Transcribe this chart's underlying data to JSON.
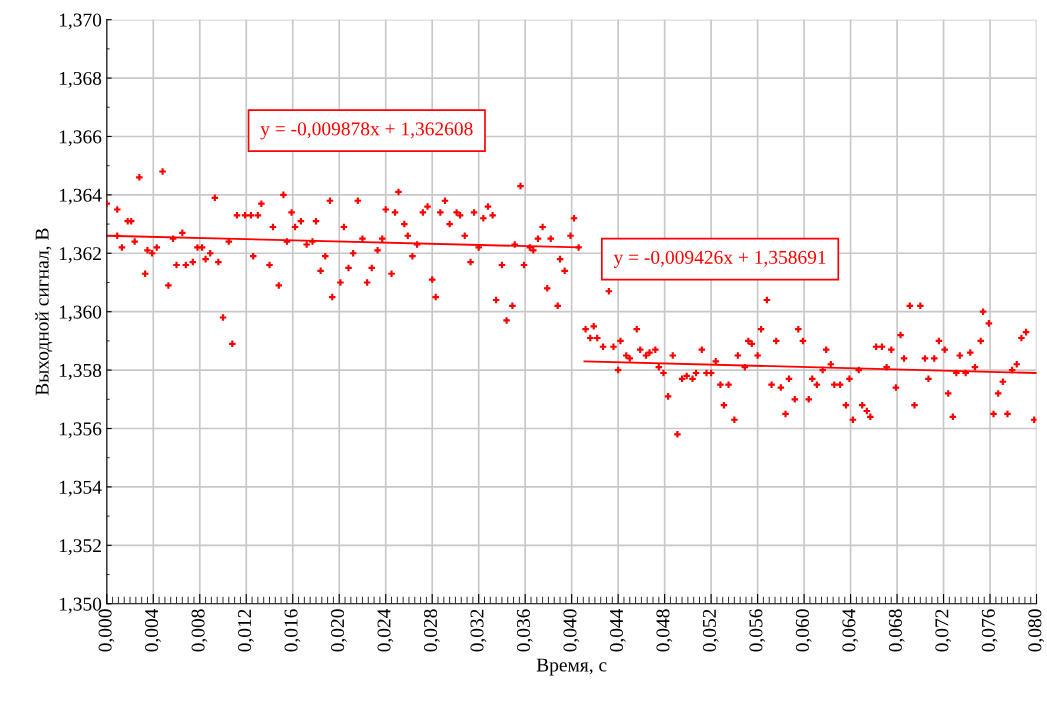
{
  "chart_data": {
    "type": "scatter",
    "xlabel": "Время, с",
    "ylabel": "Выходной сигнал, В",
    "annotations": [
      "y = -0,009878x + 1,362608",
      "y = -0,009426x + 1,358691"
    ],
    "xlim": [
      0,
      0.08
    ],
    "ylim": [
      1.35,
      1.37
    ],
    "xticks": [
      {
        "value": 0.0,
        "label": "0,000"
      },
      {
        "value": 0.004,
        "label": "0,004"
      },
      {
        "value": 0.008,
        "label": "0,008"
      },
      {
        "value": 0.012,
        "label": "0,012"
      },
      {
        "value": 0.016,
        "label": "0,016"
      },
      {
        "value": 0.02,
        "label": "0,020"
      },
      {
        "value": 0.024,
        "label": "0,024"
      },
      {
        "value": 0.028,
        "label": "0,028"
      },
      {
        "value": 0.032,
        "label": "0,032"
      },
      {
        "value": 0.036,
        "label": "0,036"
      },
      {
        "value": 0.04,
        "label": "0,040"
      },
      {
        "value": 0.044,
        "label": "0,044"
      },
      {
        "value": 0.048,
        "label": "0,048"
      },
      {
        "value": 0.052,
        "label": "0,052"
      },
      {
        "value": 0.056,
        "label": "0,056"
      },
      {
        "value": 0.06,
        "label": "0,060"
      },
      {
        "value": 0.064,
        "label": "0,064"
      },
      {
        "value": 0.068,
        "label": "0,068"
      },
      {
        "value": 0.072,
        "label": "0,072"
      },
      {
        "value": 0.076,
        "label": "0,076"
      },
      {
        "value": 0.08,
        "label": "0,080"
      }
    ],
    "yticks": [
      {
        "value": 1.35,
        "label": "1,350"
      },
      {
        "value": 1.352,
        "label": "1,352"
      },
      {
        "value": 1.354,
        "label": "1,354"
      },
      {
        "value": 1.356,
        "label": "1,356"
      },
      {
        "value": 1.358,
        "label": "1,358"
      },
      {
        "value": 1.36,
        "label": "1,360"
      },
      {
        "value": 1.362,
        "label": "1,362"
      },
      {
        "value": 1.364,
        "label": "1,364"
      },
      {
        "value": 1.366,
        "label": "1,366"
      },
      {
        "value": 1.368,
        "label": "1,368"
      },
      {
        "value": 1.37,
        "label": "1,370"
      }
    ],
    "grid": true,
    "series": [
      {
        "color": "#ff0000",
        "marker": "cross",
        "x": [
          0.0,
          0.0009,
          0.0009,
          0.0013,
          0.0018,
          0.0021,
          0.0024,
          0.0028,
          0.0033,
          0.0035,
          0.0039,
          0.0043,
          0.0048,
          0.0053,
          0.0057,
          0.006,
          0.0065,
          0.0068,
          0.0074,
          0.0078,
          0.0082,
          0.0085,
          0.0089,
          0.0093,
          0.0096,
          0.01,
          0.0105,
          0.0108,
          0.0112,
          0.0119,
          0.0124,
          0.0126,
          0.013,
          0.0133,
          0.014,
          0.0143,
          0.0148,
          0.0152,
          0.0155,
          0.0159,
          0.0162,
          0.0167,
          0.0172,
          0.0177,
          0.018,
          0.0184,
          0.0188,
          0.0192,
          0.0194,
          0.0201,
          0.0204,
          0.0208,
          0.0212,
          0.0216,
          0.022,
          0.0224,
          0.0228,
          0.0233,
          0.0237,
          0.024,
          0.0245,
          0.0248,
          0.0251,
          0.0256,
          0.0259,
          0.0263,
          0.0267,
          0.0272,
          0.0276,
          0.028,
          0.0283,
          0.0287,
          0.0291,
          0.0295,
          0.0301,
          0.0304,
          0.0308,
          0.0313,
          0.0316,
          0.032,
          0.0324,
          0.0328,
          0.0332,
          0.0335,
          0.034,
          0.0344,
          0.0349,
          0.0351,
          0.0356,
          0.0359,
          0.0364,
          0.0367,
          0.0371,
          0.0375,
          0.0379,
          0.0382,
          0.0388,
          0.039,
          0.0394,
          0.0399,
          0.0402,
          0.0406,
          0.0412,
          0.0416,
          0.0419,
          0.0422,
          0.0427,
          0.0432,
          0.0436,
          0.044,
          0.0442,
          0.0447,
          0.045,
          0.0456,
          0.0459,
          0.0464,
          0.0467,
          0.0472,
          0.0475,
          0.0479,
          0.0483,
          0.0487,
          0.0491,
          0.0495,
          0.0499,
          0.0504,
          0.0507,
          0.0512,
          0.0516,
          0.052,
          0.0524,
          0.0528,
          0.0531,
          0.0535,
          0.054,
          0.0543,
          0.0549,
          0.0552,
          0.0555,
          0.056,
          0.0563,
          0.0568,
          0.0572,
          0.0576,
          0.058,
          0.0584,
          0.0587,
          0.0592,
          0.0595,
          0.0599,
          0.0604,
          0.0607,
          0.0611,
          0.0616,
          0.0619,
          0.0623,
          0.0626,
          0.0631,
          0.0636,
          0.0639,
          0.0642,
          0.0647,
          0.065,
          0.0654,
          0.0657,
          0.0662,
          0.0667,
          0.0671,
          0.0675,
          0.0679,
          0.0683,
          0.0686,
          0.0691,
          0.0695,
          0.07,
          0.0704,
          0.0707,
          0.0712,
          0.0716,
          0.0721,
          0.0724,
          0.0728,
          0.0731,
          0.0734,
          0.0739,
          0.0743,
          0.0747,
          0.0752,
          0.0754,
          0.0759,
          0.0763,
          0.0767,
          0.0771,
          0.0775,
          0.0779,
          0.0783,
          0.0787,
          0.0791,
          0.0798
        ],
        "values": [
          1.3637,
          1.3626,
          1.3635,
          1.3622,
          1.3631,
          1.3631,
          1.3624,
          1.3646,
          1.3613,
          1.3621,
          1.362,
          1.3622,
          1.3648,
          1.3609,
          1.3625,
          1.3616,
          1.3627,
          1.3616,
          1.3617,
          1.3622,
          1.3622,
          1.3618,
          1.362,
          1.3639,
          1.3617,
          1.3598,
          1.3624,
          1.3589,
          1.3633,
          1.3633,
          1.3633,
          1.3619,
          1.3633,
          1.3637,
          1.3616,
          1.3629,
          1.3609,
          1.364,
          1.3624,
          1.3634,
          1.3629,
          1.3631,
          1.3623,
          1.3624,
          1.3631,
          1.3614,
          1.3619,
          1.3638,
          1.3605,
          1.361,
          1.3629,
          1.3615,
          1.362,
          1.3638,
          1.3625,
          1.361,
          1.3615,
          1.3621,
          1.3625,
          1.3635,
          1.3613,
          1.3634,
          1.3641,
          1.363,
          1.3626,
          1.3619,
          1.3623,
          1.3634,
          1.3636,
          1.3611,
          1.3605,
          1.3634,
          1.3638,
          1.363,
          1.3634,
          1.3633,
          1.3626,
          1.3617,
          1.3634,
          1.3622,
          1.3632,
          1.3636,
          1.3633,
          1.3604,
          1.3616,
          1.3597,
          1.3602,
          1.3623,
          1.3643,
          1.3616,
          1.3622,
          1.3621,
          1.3625,
          1.3629,
          1.3608,
          1.3625,
          1.3602,
          1.3618,
          1.3614,
          1.3626,
          1.3632,
          1.3622,
          1.3594,
          1.3591,
          1.3595,
          1.3591,
          1.3588,
          1.3607,
          1.3588,
          1.358,
          1.359,
          1.3585,
          1.3584,
          1.3594,
          1.3587,
          1.3585,
          1.3586,
          1.3587,
          1.3581,
          1.3579,
          1.3571,
          1.3585,
          1.3558,
          1.3577,
          1.3578,
          1.3577,
          1.3579,
          1.3587,
          1.3579,
          1.3579,
          1.3583,
          1.3575,
          1.3568,
          1.3575,
          1.3563,
          1.3585,
          1.3581,
          1.359,
          1.3589,
          1.3585,
          1.3594,
          1.3604,
          1.3575,
          1.359,
          1.3574,
          1.3565,
          1.3577,
          1.357,
          1.3594,
          1.359,
          1.357,
          1.3577,
          1.3575,
          1.358,
          1.3587,
          1.3582,
          1.3575,
          1.3575,
          1.3568,
          1.3577,
          1.3563,
          1.358,
          1.3568,
          1.3566,
          1.3564,
          1.3588,
          1.3588,
          1.3581,
          1.3587,
          1.3574,
          1.3592,
          1.3584,
          1.3602,
          1.3568,
          1.3602,
          1.3584,
          1.3577,
          1.3584,
          1.359,
          1.3587,
          1.3572,
          1.3564,
          1.3579,
          1.3585,
          1.3579,
          1.3586,
          1.3581,
          1.359,
          1.36,
          1.3596,
          1.3565,
          1.3572,
          1.3576,
          1.3565,
          1.358,
          1.3582,
          1.3591,
          1.3593,
          1.3563
        ]
      },
      {
        "type": "line",
        "color": "#ff0000",
        "x": [
          0.0,
          0.0406
        ],
        "values": [
          1.3626,
          1.3622
        ]
      },
      {
        "type": "line",
        "color": "#ff0000",
        "x": [
          0.0411,
          0.08
        ],
        "values": [
          1.3583,
          1.3579
        ]
      }
    ]
  }
}
